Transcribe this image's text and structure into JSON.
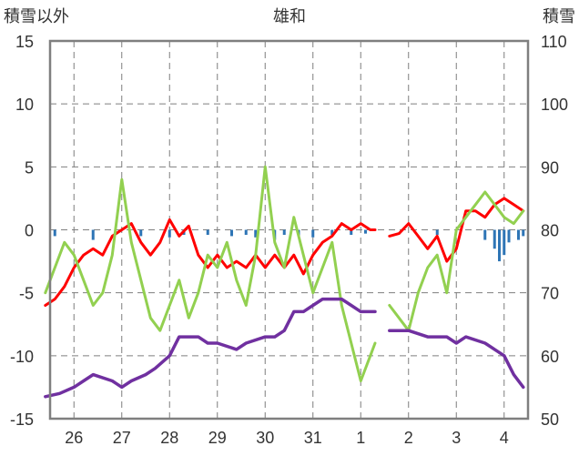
{
  "chart_data": {
    "type": "line",
    "title": "雄和",
    "left_axis_title": "積雪以外",
    "right_axis_title": "積雪",
    "ylim_left": [
      -15,
      15
    ],
    "ylim_right": [
      50,
      110
    ],
    "yticks_left": [
      "15",
      "10",
      "5",
      "0",
      "-5",
      "-10",
      "-15"
    ],
    "yticks_right": [
      "110",
      "100",
      "90",
      "80",
      "70",
      "60",
      "50"
    ],
    "x_categories": [
      "26",
      "27",
      "28",
      "29",
      "30",
      "31",
      "1",
      "2",
      "3",
      "4"
    ],
    "grid": true,
    "colors": {
      "red_series": "#ff0000",
      "green_series": "#92d050",
      "purple_series": "#7030a0",
      "blue_bars": "#2e75b6",
      "grid": "#7f7f7f",
      "frame": "#7f7f7f"
    },
    "series": [
      {
        "axis": "left",
        "color": "#ff0000",
        "segments": [
          [
            [
              -0.6,
              -6
            ],
            [
              -0.4,
              -5.5
            ],
            [
              -0.2,
              -4.5
            ],
            [
              0,
              -3
            ],
            [
              0.2,
              -2
            ],
            [
              0.4,
              -1.5
            ],
            [
              0.6,
              -2
            ],
            [
              0.8,
              -0.5
            ],
            [
              1.0,
              0
            ],
            [
              1.2,
              0.5
            ],
            [
              1.4,
              -1
            ],
            [
              1.6,
              -2
            ],
            [
              1.8,
              -1
            ],
            [
              2.0,
              0.8
            ],
            [
              2.2,
              -0.5
            ],
            [
              2.4,
              0.3
            ],
            [
              2.6,
              -2
            ],
            [
              2.8,
              -3
            ],
            [
              3.0,
              -2
            ],
            [
              3.2,
              -3
            ],
            [
              3.4,
              -2.5
            ],
            [
              3.6,
              -3
            ],
            [
              3.8,
              -2
            ],
            [
              4.0,
              -3
            ],
            [
              4.2,
              -2
            ],
            [
              4.4,
              -3
            ],
            [
              4.6,
              -2
            ],
            [
              4.8,
              -3.5
            ],
            [
              5.0,
              -2
            ],
            [
              5.2,
              -1
            ],
            [
              5.4,
              -0.5
            ],
            [
              5.6,
              0.5
            ],
            [
              5.8,
              0
            ],
            [
              6.0,
              0.5
            ],
            [
              6.2,
              0
            ],
            [
              6.3,
              0
            ]
          ],
          [
            [
              6.6,
              -0.5
            ],
            [
              6.8,
              -0.3
            ],
            [
              7.0,
              0.5
            ],
            [
              7.2,
              -0.5
            ],
            [
              7.4,
              -1.5
            ],
            [
              7.6,
              -0.5
            ],
            [
              7.8,
              -2.5
            ],
            [
              8.0,
              -1.5
            ],
            [
              8.2,
              1.5
            ],
            [
              8.4,
              1.5
            ],
            [
              8.6,
              1
            ],
            [
              8.8,
              2
            ],
            [
              9.0,
              2.5
            ],
            [
              9.2,
              2
            ],
            [
              9.4,
              1.5
            ]
          ]
        ]
      },
      {
        "axis": "left",
        "color": "#92d050",
        "segments": [
          [
            [
              -0.6,
              -5
            ],
            [
              -0.4,
              -3
            ],
            [
              -0.2,
              -1
            ],
            [
              0,
              -2
            ],
            [
              0.2,
              -4
            ],
            [
              0.4,
              -6
            ],
            [
              0.6,
              -5
            ],
            [
              0.8,
              -2
            ],
            [
              1.0,
              4
            ],
            [
              1.2,
              -1
            ],
            [
              1.4,
              -4
            ],
            [
              1.6,
              -7
            ],
            [
              1.8,
              -8
            ],
            [
              2.0,
              -6
            ],
            [
              2.2,
              -4
            ],
            [
              2.4,
              -7
            ],
            [
              2.6,
              -5
            ],
            [
              2.8,
              -2
            ],
            [
              3.0,
              -3
            ],
            [
              3.2,
              -1
            ],
            [
              3.4,
              -4
            ],
            [
              3.6,
              -6
            ],
            [
              3.8,
              -2
            ],
            [
              4.0,
              5
            ],
            [
              4.2,
              -1
            ],
            [
              4.4,
              -3
            ],
            [
              4.6,
              1
            ],
            [
              4.8,
              -2
            ],
            [
              5.0,
              -5
            ],
            [
              5.2,
              -3
            ],
            [
              5.4,
              -1
            ],
            [
              5.6,
              -6
            ],
            [
              5.8,
              -9
            ],
            [
              6.0,
              -12
            ],
            [
              6.2,
              -10
            ],
            [
              6.3,
              -9
            ]
          ],
          [
            [
              6.6,
              -6
            ],
            [
              6.8,
              -7
            ],
            [
              7.0,
              -8
            ],
            [
              7.2,
              -5
            ],
            [
              7.4,
              -3
            ],
            [
              7.6,
              -2
            ],
            [
              7.8,
              -5
            ],
            [
              8.0,
              0
            ],
            [
              8.2,
              1
            ],
            [
              8.4,
              2
            ],
            [
              8.6,
              3
            ],
            [
              8.8,
              2
            ],
            [
              9.0,
              1
            ],
            [
              9.2,
              0.5
            ],
            [
              9.4,
              1.5
            ]
          ]
        ]
      },
      {
        "axis": "right",
        "color": "#7030a0",
        "segments": [
          [
            [
              -0.6,
              53.5
            ],
            [
              -0.3,
              54
            ],
            [
              0,
              55
            ],
            [
              0.2,
              56
            ],
            [
              0.4,
              57
            ],
            [
              0.8,
              56
            ],
            [
              1.0,
              55
            ],
            [
              1.2,
              56
            ],
            [
              1.5,
              57
            ],
            [
              1.7,
              58
            ],
            [
              2.0,
              60
            ],
            [
              2.2,
              63
            ],
            [
              2.6,
              63
            ],
            [
              2.8,
              62
            ],
            [
              3.0,
              62
            ],
            [
              3.4,
              61
            ],
            [
              3.6,
              62
            ],
            [
              4.0,
              63
            ],
            [
              4.2,
              63
            ],
            [
              4.4,
              64
            ],
            [
              4.6,
              67
            ],
            [
              4.8,
              67
            ],
            [
              5.0,
              68
            ],
            [
              5.2,
              69
            ],
            [
              5.4,
              69
            ],
            [
              5.6,
              69
            ],
            [
              5.8,
              68
            ],
            [
              6.0,
              67
            ],
            [
              6.3,
              67
            ]
          ],
          [
            [
              6.6,
              64
            ],
            [
              7.0,
              64
            ],
            [
              7.4,
              63
            ],
            [
              7.6,
              63
            ],
            [
              7.8,
              63
            ],
            [
              8.0,
              62
            ],
            [
              8.2,
              63
            ],
            [
              8.6,
              62
            ],
            [
              8.8,
              61
            ],
            [
              9.0,
              60
            ],
            [
              9.2,
              57
            ],
            [
              9.4,
              55
            ]
          ]
        ]
      },
      {
        "axis": "left",
        "type": "bar",
        "color": "#2e75b6",
        "points": [
          [
            -0.4,
            -0.5
          ],
          [
            0.4,
            -0.8
          ],
          [
            1.4,
            -0.5
          ],
          [
            2.0,
            -0.6
          ],
          [
            2.3,
            -0.4
          ],
          [
            2.8,
            -0.4
          ],
          [
            3.3,
            -0.5
          ],
          [
            3.6,
            -0.4
          ],
          [
            3.8,
            -0.6
          ],
          [
            4.2,
            -0.8
          ],
          [
            4.4,
            -0.4
          ],
          [
            4.7,
            -0.5
          ],
          [
            5.0,
            -0.6
          ],
          [
            5.4,
            -0.4
          ],
          [
            5.8,
            -0.4
          ],
          [
            6.1,
            -0.3
          ],
          [
            7.6,
            -0.4
          ],
          [
            8.6,
            -0.8
          ],
          [
            8.8,
            -1.5
          ],
          [
            8.9,
            -2.5
          ],
          [
            9.0,
            -2.0
          ],
          [
            9.1,
            -1.0
          ],
          [
            9.3,
            -0.8
          ],
          [
            9.4,
            -0.5
          ]
        ]
      }
    ]
  }
}
